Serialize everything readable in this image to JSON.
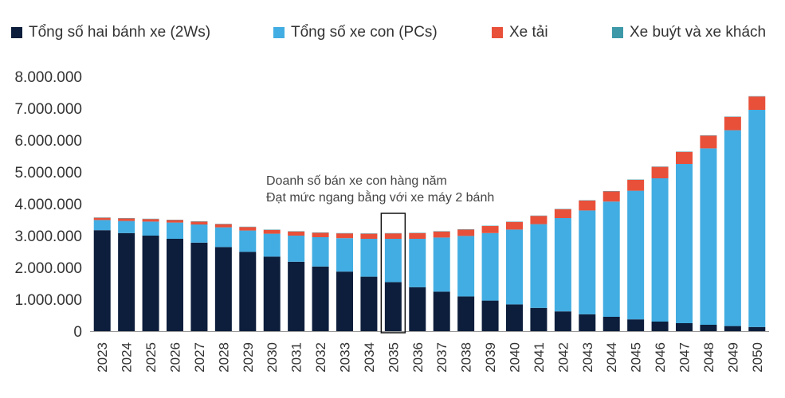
{
  "chart_data": {
    "type": "bar",
    "stacked": true,
    "categories": [
      "2023",
      "2024",
      "2025",
      "2026",
      "2027",
      "2028",
      "2029",
      "2030",
      "2031",
      "2032",
      "2033",
      "2034",
      "2035",
      "2036",
      "2037",
      "2038",
      "2039",
      "2040",
      "2041",
      "2042",
      "2043",
      "2044",
      "2045",
      "2046",
      "2047",
      "2048",
      "2049",
      "2050"
    ],
    "series": [
      {
        "name": "Tổng số hai bánh xe (2Ws)",
        "color": "#0d1e3c",
        "values": [
          3170000,
          3080000,
          3000000,
          2900000,
          2780000,
          2640000,
          2490000,
          2340000,
          2180000,
          2030000,
          1870000,
          1710000,
          1540000,
          1380000,
          1240000,
          1090000,
          960000,
          840000,
          730000,
          620000,
          530000,
          450000,
          370000,
          300000,
          250000,
          200000,
          160000,
          130000
        ]
      },
      {
        "name": "Tổng số xe con (PCs)",
        "color": "#42ade2",
        "values": [
          320000,
          380000,
          440000,
          510000,
          570000,
          620000,
          670000,
          720000,
          820000,
          920000,
          1050000,
          1190000,
          1360000,
          1520000,
          1700000,
          1900000,
          2120000,
          2350000,
          2630000,
          2930000,
          3260000,
          3620000,
          4040000,
          4500000,
          5000000,
          5540000,
          6150000,
          6820000
        ]
      },
      {
        "name": "Xe tải",
        "color": "#e8503a",
        "values": [
          70000,
          80000,
          80000,
          80000,
          90000,
          100000,
          110000,
          120000,
          130000,
          140000,
          150000,
          160000,
          170000,
          180000,
          190000,
          200000,
          220000,
          240000,
          260000,
          280000,
          310000,
          320000,
          340000,
          360000,
          380000,
          400000,
          420000,
          420000
        ]
      },
      {
        "name": "Xe buýt và xe khách",
        "color": "#3d99a8",
        "values": [
          10000,
          10000,
          10000,
          10000,
          10000,
          10000,
          10000,
          10000,
          10000,
          10000,
          10000,
          10000,
          10000,
          10000,
          10000,
          10000,
          10000,
          10000,
          10000,
          10000,
          10000,
          10000,
          10000,
          10000,
          10000,
          10000,
          10000,
          10000
        ]
      }
    ],
    "yticks": [
      "0",
      "1.000.000",
      "2.000.000",
      "3.000.000",
      "4.000.000",
      "5.000.000",
      "6.000.000",
      "7.000.000",
      "8.000.000"
    ],
    "ylim": [
      0,
      8000000
    ],
    "ytick_step": 1000000,
    "grid": false,
    "legend_position": "top",
    "title": "",
    "xlabel": "",
    "ylabel": "",
    "annotation": {
      "lines": [
        "Doanh số bán xe con hàng năm",
        "Đạt mức ngang bằng với xe máy 2 bánh"
      ],
      "highlight_category": "2035"
    }
  }
}
